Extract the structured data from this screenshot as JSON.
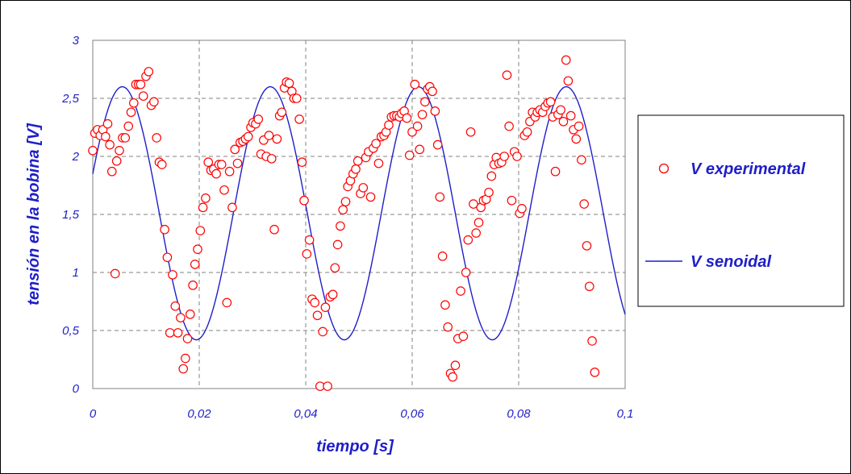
{
  "chart_data": {
    "type": "scatter",
    "xlabel": "tiempo [s]",
    "ylabel": "tensión en la bobina [V]",
    "xlim": [
      0,
      0.1
    ],
    "ylim": [
      0,
      3
    ],
    "x_ticks": [
      "0",
      "0,02",
      "0,04",
      "0,06",
      "0,08",
      "0,1"
    ],
    "y_ticks": [
      "0",
      "0,5",
      "1",
      "1,5",
      "2",
      "2,5",
      "3"
    ],
    "grid": true,
    "legend_position": "right",
    "colors": {
      "experimental": "#ff0000",
      "senoidal": "#1f1fc8",
      "axis_text": "#1f1fc8",
      "grid": "#808080"
    },
    "series": [
      {
        "name": "V experimental",
        "marker": "circle",
        "points": [
          [
            0.0,
            2.05
          ],
          [
            0.0004,
            2.2
          ],
          [
            0.0009,
            2.23
          ],
          [
            0.0014,
            2.18
          ],
          [
            0.0019,
            2.23
          ],
          [
            0.0024,
            2.17
          ],
          [
            0.0028,
            2.28
          ],
          [
            0.0032,
            2.1
          ],
          [
            0.0036,
            1.87
          ],
          [
            0.0042,
            0.99
          ],
          [
            0.0045,
            1.96
          ],
          [
            0.005,
            2.05
          ],
          [
            0.0056,
            2.16
          ],
          [
            0.0061,
            2.16
          ],
          [
            0.0067,
            2.26
          ],
          [
            0.0072,
            2.38
          ],
          [
            0.0077,
            2.46
          ],
          [
            0.0081,
            2.62
          ],
          [
            0.0086,
            2.62
          ],
          [
            0.009,
            2.62
          ],
          [
            0.0095,
            2.52
          ],
          [
            0.01,
            2.69
          ],
          [
            0.0105,
            2.73
          ],
          [
            0.011,
            2.44
          ],
          [
            0.0115,
            2.47
          ],
          [
            0.012,
            2.16
          ],
          [
            0.0125,
            1.95
          ],
          [
            0.013,
            1.93
          ],
          [
            0.0135,
            1.37
          ],
          [
            0.014,
            1.13
          ],
          [
            0.0145,
            0.48
          ],
          [
            0.015,
            0.98
          ],
          [
            0.0155,
            0.71
          ],
          [
            0.016,
            0.48
          ],
          [
            0.0165,
            0.61
          ],
          [
            0.017,
            0.17
          ],
          [
            0.0174,
            0.26
          ],
          [
            0.0178,
            0.43
          ],
          [
            0.0183,
            0.64
          ],
          [
            0.0188,
            0.89
          ],
          [
            0.0192,
            1.07
          ],
          [
            0.0197,
            1.2
          ],
          [
            0.0202,
            1.36
          ],
          [
            0.0207,
            1.56
          ],
          [
            0.0212,
            1.64
          ],
          [
            0.0217,
            1.95
          ],
          [
            0.0222,
            1.88
          ],
          [
            0.0227,
            1.89
          ],
          [
            0.0232,
            1.85
          ],
          [
            0.0237,
            1.93
          ],
          [
            0.0242,
            1.93
          ],
          [
            0.0247,
            1.71
          ],
          [
            0.0252,
            0.74
          ],
          [
            0.0257,
            1.87
          ],
          [
            0.0262,
            1.56
          ],
          [
            0.0267,
            2.06
          ],
          [
            0.0272,
            1.94
          ],
          [
            0.0277,
            2.12
          ],
          [
            0.0282,
            2.13
          ],
          [
            0.0287,
            2.15
          ],
          [
            0.0292,
            2.17
          ],
          [
            0.0297,
            2.25
          ],
          [
            0.0301,
            2.29
          ],
          [
            0.0306,
            2.28
          ],
          [
            0.0311,
            2.32
          ],
          [
            0.0316,
            2.02
          ],
          [
            0.0321,
            2.14
          ],
          [
            0.0326,
            2.0
          ],
          [
            0.0331,
            2.18
          ],
          [
            0.0336,
            1.98
          ],
          [
            0.0341,
            1.37
          ],
          [
            0.0346,
            2.15
          ],
          [
            0.0351,
            2.35
          ],
          [
            0.0355,
            2.38
          ],
          [
            0.036,
            2.59
          ],
          [
            0.0364,
            2.64
          ],
          [
            0.0369,
            2.63
          ],
          [
            0.0374,
            2.56
          ],
          [
            0.0378,
            2.5
          ],
          [
            0.0383,
            2.5
          ],
          [
            0.0388,
            2.32
          ],
          [
            0.0393,
            1.95
          ],
          [
            0.0397,
            1.62
          ],
          [
            0.0402,
            1.16
          ],
          [
            0.0407,
            1.28
          ],
          [
            0.0412,
            0.77
          ],
          [
            0.0417,
            0.74
          ],
          [
            0.0422,
            0.63
          ],
          [
            0.0427,
            0.02
          ],
          [
            0.0432,
            0.49
          ],
          [
            0.0437,
            0.7
          ],
          [
            0.0441,
            0.02
          ],
          [
            0.0446,
            0.79
          ],
          [
            0.0451,
            0.81
          ],
          [
            0.0455,
            1.04
          ],
          [
            0.046,
            1.24
          ],
          [
            0.0465,
            1.4
          ],
          [
            0.047,
            1.54
          ],
          [
            0.0475,
            1.61
          ],
          [
            0.0479,
            1.74
          ],
          [
            0.0484,
            1.79
          ],
          [
            0.0489,
            1.85
          ],
          [
            0.0494,
            1.89
          ],
          [
            0.0498,
            1.96
          ],
          [
            0.0503,
            1.68
          ],
          [
            0.0508,
            1.73
          ],
          [
            0.0513,
            1.99
          ],
          [
            0.0518,
            2.04
          ],
          [
            0.0522,
            1.65
          ],
          [
            0.0527,
            2.07
          ],
          [
            0.0532,
            2.11
          ],
          [
            0.0537,
            1.94
          ],
          [
            0.0542,
            2.17
          ],
          [
            0.0547,
            2.18
          ],
          [
            0.0551,
            2.21
          ],
          [
            0.0556,
            2.27
          ],
          [
            0.0561,
            2.34
          ],
          [
            0.0566,
            2.35
          ],
          [
            0.0571,
            2.35
          ],
          [
            0.0576,
            2.34
          ],
          [
            0.058,
            2.37
          ],
          [
            0.0585,
            2.39
          ],
          [
            0.059,
            2.33
          ],
          [
            0.0595,
            2.01
          ],
          [
            0.06,
            2.21
          ],
          [
            0.0605,
            2.62
          ],
          [
            0.061,
            2.26
          ],
          [
            0.0614,
            2.06
          ],
          [
            0.0619,
            2.36
          ],
          [
            0.0624,
            2.47
          ],
          [
            0.0629,
            2.58
          ],
          [
            0.0633,
            2.6
          ],
          [
            0.0638,
            2.56
          ],
          [
            0.0643,
            2.39
          ],
          [
            0.0648,
            2.1
          ],
          [
            0.0652,
            1.65
          ],
          [
            0.0657,
            1.14
          ],
          [
            0.0662,
            0.72
          ],
          [
            0.0667,
            0.53
          ],
          [
            0.0672,
            0.13
          ],
          [
            0.0676,
            0.1
          ],
          [
            0.0681,
            0.2
          ],
          [
            0.0686,
            0.43
          ],
          [
            0.0691,
            0.84
          ],
          [
            0.0696,
            0.45
          ],
          [
            0.0701,
            1.0
          ],
          [
            0.0705,
            1.28
          ],
          [
            0.071,
            2.21
          ],
          [
            0.0715,
            1.59
          ],
          [
            0.072,
            1.34
          ],
          [
            0.0725,
            1.43
          ],
          [
            0.0729,
            1.56
          ],
          [
            0.0734,
            1.62
          ],
          [
            0.0739,
            1.63
          ],
          [
            0.0744,
            1.69
          ],
          [
            0.0749,
            1.83
          ],
          [
            0.0754,
            1.93
          ],
          [
            0.0758,
            1.99
          ],
          [
            0.0763,
            1.94
          ],
          [
            0.0768,
            1.95
          ],
          [
            0.0773,
            2.0
          ],
          [
            0.0778,
            2.7
          ],
          [
            0.0782,
            2.26
          ],
          [
            0.0787,
            1.62
          ],
          [
            0.0792,
            2.04
          ],
          [
            0.0797,
            2.0
          ],
          [
            0.0802,
            1.51
          ],
          [
            0.0806,
            1.55
          ],
          [
            0.0811,
            2.18
          ],
          [
            0.0816,
            2.21
          ],
          [
            0.0821,
            2.3
          ],
          [
            0.0826,
            2.38
          ],
          [
            0.0831,
            2.34
          ],
          [
            0.0835,
            2.38
          ],
          [
            0.084,
            2.4
          ],
          [
            0.0845,
            2.38
          ],
          [
            0.085,
            2.43
          ],
          [
            0.0855,
            2.46
          ],
          [
            0.086,
            2.47
          ],
          [
            0.0864,
            2.34
          ],
          [
            0.0869,
            1.87
          ],
          [
            0.0874,
            2.36
          ],
          [
            0.0879,
            2.4
          ],
          [
            0.0884,
            2.3
          ],
          [
            0.0889,
            2.83
          ],
          [
            0.0893,
            2.65
          ],
          [
            0.0898,
            2.35
          ],
          [
            0.0903,
            2.23
          ],
          [
            0.0908,
            2.15
          ],
          [
            0.0913,
            2.26
          ],
          [
            0.0918,
            1.97
          ],
          [
            0.0923,
            1.59
          ],
          [
            0.0928,
            1.23
          ],
          [
            0.0933,
            0.88
          ],
          [
            0.0938,
            0.41
          ],
          [
            0.0943,
            0.14
          ]
        ]
      },
      {
        "name": "V senoidal",
        "marker": "line",
        "model": {
          "offset": 1.51,
          "amplitude": 1.09,
          "period": 0.0278,
          "phase_x0": -0.0014
        }
      }
    ]
  }
}
